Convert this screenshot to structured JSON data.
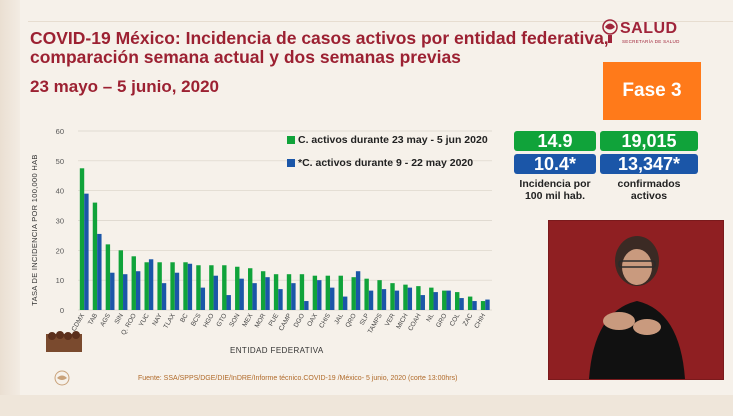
{
  "header": {
    "title_line1": "COVID-19 México: Incidencia de casos activos por entidad federativa,",
    "title_line2": "comparación semana actual y dos semanas previas",
    "date_range": "23 mayo – 5 junio, 2020",
    "logo_text": "SALUD",
    "logo_subtext": "SECRETARÍA DE SALUD",
    "phase": "Fase 3"
  },
  "legend": {
    "current": "C. activos durante 23 may - 5 jun 2020",
    "previous": "*C. activos durante  9 - 22 may 2020"
  },
  "stats": {
    "incidence_current": "14.9",
    "incidence_previous": "10.4*",
    "confirmed_current": "19,015",
    "confirmed_previous": "13,347*",
    "incidence_caption_1": "Incidencia por",
    "incidence_caption_2": "100 mil hab.",
    "confirmed_caption_1": "confirmados",
    "confirmed_caption_2": "activos"
  },
  "source": "Fuente: SSA/SPPS/DGE/DIE/InDRE/Informe técnico.COVID-19 /México- 5 junio, 2020 (corte 13:00hrs)",
  "colors": {
    "current": "#10a33a",
    "previous": "#1b56a8",
    "title": "#9c2132",
    "phase": "#ff7a1a"
  },
  "chart_data": {
    "type": "bar",
    "xlabel": "ENTIDAD FEDERATIVA",
    "ylabel": "TASA DE INCIDENCIA POR 100,000 HAB",
    "ylim": [
      0,
      60
    ],
    "yticks": [
      0,
      10,
      20,
      30,
      40,
      50,
      60
    ],
    "categories": [
      "CDMX",
      "TAB",
      "AGS",
      "SIN",
      "Q. ROO",
      "YUC",
      "NAY",
      "TLAX",
      "BC",
      "BCS",
      "HGO",
      "GTO",
      "SON",
      "MEX",
      "MOR",
      "PUE",
      "CAMP",
      "DGO",
      "OAX",
      "CHIS",
      "JAL",
      "QRO",
      "SLP",
      "TAMPS",
      "VER",
      "MICH",
      "COAH",
      "NL",
      "GRO",
      "COL",
      "ZAC",
      "CHIH"
    ],
    "series": [
      {
        "name": "C. activos durante 23 may - 5 jun 2020",
        "values": [
          47.5,
          36,
          22,
          20,
          18,
          16,
          16,
          16,
          16,
          15,
          15,
          15,
          14.5,
          14,
          13,
          12,
          12,
          12,
          11.5,
          11.5,
          11.5,
          11,
          10.5,
          10,
          9,
          8.5,
          8,
          7.5,
          6.5,
          6,
          4.5,
          3
        ]
      },
      {
        "name": "*C. activos durante  9 - 22 may 2020",
        "values": [
          39,
          25.5,
          12.5,
          12,
          13,
          17,
          9,
          12.5,
          15.5,
          7.5,
          11.5,
          5,
          10.5,
          9,
          11,
          7,
          9,
          3,
          10,
          7.5,
          4.5,
          13,
          6.5,
          7,
          6.5,
          7.5,
          5,
          6,
          6.5,
          4,
          3,
          3.5
        ]
      }
    ]
  }
}
